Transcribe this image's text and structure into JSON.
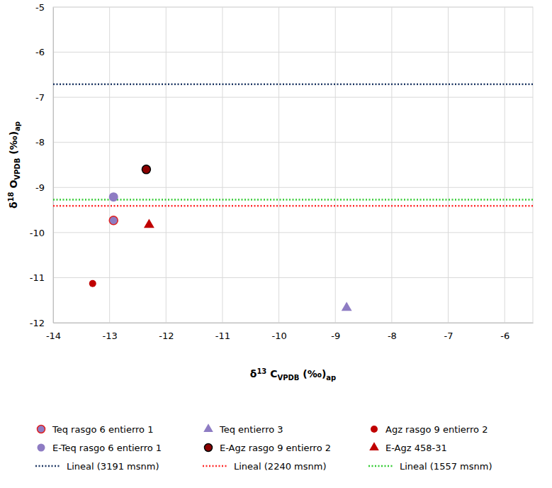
{
  "chart_data": {
    "type": "scatter",
    "x_label": [
      "δ",
      "13",
      " C",
      "VPDB",
      " (‰)",
      "ap"
    ],
    "y_label": [
      "δ",
      "18",
      " O",
      "VPDB",
      " (‰)",
      "ap"
    ],
    "xlim": [
      -14,
      -5.5
    ],
    "xticks": [
      -14,
      -13,
      -12,
      -11,
      -10,
      -9,
      -8,
      -7,
      -6
    ],
    "ylim": [
      -12,
      -5
    ],
    "yticks": [
      -12,
      -11,
      -10,
      -9,
      -8,
      -7,
      -6,
      -5
    ],
    "grid": true,
    "legend": "bottom",
    "series": [
      {
        "name": "Teq rasgo 6 entierro 1",
        "type": "scatter",
        "marker": "circle",
        "color": "#8e7cc3",
        "x": [
          -12.93
        ],
        "values": [
          -9.73
        ]
      },
      {
        "name": "Teq entierro 3",
        "type": "scatter",
        "marker": "triangle",
        "color": "#8e7cc3",
        "x": [
          -8.8
        ],
        "values": [
          -11.67
        ]
      },
      {
        "name": "Agz rasgo 9 entierro 2",
        "type": "scatter",
        "marker": "circle",
        "color": "#c00000",
        "x": [
          -13.3
        ],
        "values": [
          -11.13
        ]
      },
      {
        "name": "E-Teq rasgo 6 entierro 1",
        "type": "scatter",
        "marker": "circle",
        "color": "#8e7cc3",
        "x": [
          -12.93
        ],
        "values": [
          -9.21
        ]
      },
      {
        "name": "E-Agz rasgo 9 entierro 2",
        "type": "scatter",
        "marker": "circle",
        "color": "#8b0000",
        "x": [
          -12.35
        ],
        "values": [
          -8.6
        ]
      },
      {
        "name": "E-Agz 458-31",
        "type": "scatter",
        "marker": "triangle",
        "color": "#c00000",
        "x": [
          -12.3
        ],
        "values": [
          -9.83
        ]
      },
      {
        "name": "Lineal (3191 msnm)",
        "type": "line",
        "line_style": "dotted",
        "color": "#1f3864",
        "x": [
          -14,
          -5.5
        ],
        "values": [
          -6.71,
          -6.71
        ]
      },
      {
        "name": "Lineal (2240 msnm)",
        "type": "line",
        "line_style": "dotted",
        "color": "#ff2a2a",
        "x": [
          -14,
          -5.5
        ],
        "values": [
          -9.41,
          -9.41
        ]
      },
      {
        "name": "Lineal (1557 msnm)",
        "type": "line",
        "line_style": "dotted",
        "color": "#33cc33",
        "x": [
          -14,
          -5.5
        ],
        "values": [
          -9.27,
          -9.27
        ]
      }
    ]
  }
}
